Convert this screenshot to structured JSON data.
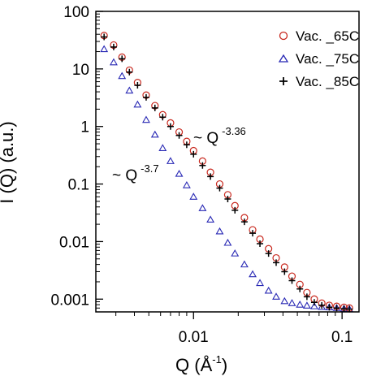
{
  "chart_data": {
    "type": "scatter",
    "xlabel": {
      "main": "Q (",
      "unit": "Å",
      "exp": "-1",
      "close": ")"
    },
    "ylabel": "I (Q) (a.u.)",
    "xscale": "log",
    "yscale": "log",
    "xlim": [
      0.0022,
      0.13
    ],
    "ylim": [
      0.0006,
      100
    ],
    "x_ticks": [
      0.01,
      0.1
    ],
    "x_tick_labels": [
      "0.01",
      "0.1"
    ],
    "y_ticks": [
      100,
      10,
      1,
      0.1,
      0.01,
      0.001
    ],
    "y_tick_labels": [
      "100",
      "10",
      "1",
      "0.1",
      "0.01",
      "0.001"
    ],
    "legend_position": "top-right",
    "series": [
      {
        "name": "Vac. _65C",
        "marker": "circle",
        "color": "#c8281e",
        "x": [
          0.0025,
          0.0029,
          0.0033,
          0.0037,
          0.0042,
          0.0048,
          0.0055,
          0.0062,
          0.007,
          0.008,
          0.009,
          0.01,
          0.0115,
          0.013,
          0.015,
          0.017,
          0.019,
          0.022,
          0.025,
          0.028,
          0.032,
          0.036,
          0.041,
          0.046,
          0.052,
          0.058,
          0.065,
          0.073,
          0.082,
          0.092,
          0.103,
          0.112
        ],
        "y": [
          38,
          26,
          16,
          9.5,
          5.8,
          3.5,
          2.3,
          1.6,
          1.15,
          0.8,
          0.55,
          0.38,
          0.25,
          0.16,
          0.1,
          0.065,
          0.042,
          0.026,
          0.016,
          0.011,
          0.0075,
          0.0052,
          0.0036,
          0.0025,
          0.0018,
          0.0013,
          0.001,
          0.00085,
          0.00078,
          0.00075,
          0.00072,
          0.0007
        ]
      },
      {
        "name": "Vac. _75C",
        "marker": "triangle",
        "color": "#2828b4",
        "x": [
          0.0025,
          0.0029,
          0.0033,
          0.0037,
          0.0042,
          0.0048,
          0.0055,
          0.0062,
          0.007,
          0.008,
          0.009,
          0.01,
          0.0115,
          0.013,
          0.015,
          0.017,
          0.019,
          0.022,
          0.025,
          0.028,
          0.032,
          0.036,
          0.041,
          0.046,
          0.052,
          0.058,
          0.065,
          0.073,
          0.082,
          0.092,
          0.103,
          0.112
        ],
        "y": [
          22,
          13,
          7.5,
          4.2,
          2.4,
          1.3,
          0.72,
          0.42,
          0.25,
          0.15,
          0.095,
          0.06,
          0.038,
          0.024,
          0.015,
          0.0095,
          0.0062,
          0.004,
          0.0027,
          0.0019,
          0.0014,
          0.0011,
          0.00092,
          0.00085,
          0.0008,
          0.00077,
          0.00075,
          0.00073,
          0.00072,
          0.0007,
          0.00068,
          0.00067
        ]
      },
      {
        "name": "Vac. _85C",
        "marker": "plus",
        "color": "#000000",
        "x": [
          0.0025,
          0.0029,
          0.0033,
          0.0037,
          0.0042,
          0.0048,
          0.0055,
          0.0062,
          0.007,
          0.008,
          0.009,
          0.01,
          0.0115,
          0.013,
          0.015,
          0.017,
          0.019,
          0.022,
          0.025,
          0.028,
          0.032,
          0.036,
          0.041,
          0.046,
          0.052,
          0.058,
          0.065,
          0.073,
          0.082,
          0.092,
          0.103,
          0.112
        ],
        "y": [
          36,
          24,
          15,
          8.8,
          5.2,
          3.2,
          2.1,
          1.45,
          1.0,
          0.7,
          0.48,
          0.33,
          0.21,
          0.135,
          0.085,
          0.055,
          0.035,
          0.022,
          0.014,
          0.0092,
          0.0062,
          0.0043,
          0.003,
          0.0021,
          0.0015,
          0.0011,
          0.00088,
          0.00078,
          0.00072,
          0.0007,
          0.00068,
          0.00067
        ]
      }
    ],
    "annotations": [
      {
        "prefix": "~ Q",
        "exponent": "-3.36",
        "near_series": "Vac. _65C"
      },
      {
        "prefix": "~ Q",
        "exponent": "-3.7",
        "near_series": "Vac. _75C"
      }
    ]
  }
}
